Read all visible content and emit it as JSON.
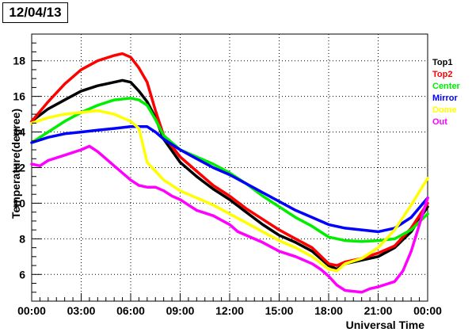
{
  "chart_data": {
    "type": "line",
    "title": "12/04/13",
    "xlabel": "Universal Time",
    "ylabel": "Temperature(degree)",
    "xlim": [
      0,
      24
    ],
    "ylim": [
      4.5,
      19.5
    ],
    "x_tick_labels": [
      "00:00",
      "03:00",
      "06:00",
      "09:00",
      "12:00",
      "15:00",
      "18:00",
      "21:00",
      "00:00"
    ],
    "x_tick_values": [
      0,
      3,
      6,
      9,
      12,
      15,
      18,
      21,
      24
    ],
    "y_ticks": [
      6,
      8,
      10,
      12,
      14,
      16,
      18
    ],
    "grid": true,
    "legend_position": "right",
    "series": [
      {
        "name": "Top1",
        "color": "#000000",
        "x": [
          0,
          1,
          2,
          3,
          4,
          5,
          5.5,
          6,
          6.5,
          7,
          7.5,
          8,
          9,
          10,
          11,
          12,
          13,
          14,
          15,
          16,
          17,
          18,
          18.5,
          19,
          20,
          21,
          22,
          23,
          24
        ],
        "y": [
          14.6,
          15.3,
          15.8,
          16.3,
          16.6,
          16.8,
          16.9,
          16.8,
          16.3,
          15.7,
          14.8,
          13.6,
          12.3,
          11.5,
          10.8,
          10.2,
          9.5,
          8.8,
          8.2,
          7.8,
          7.3,
          6.5,
          6.3,
          6.6,
          6.8,
          7.0,
          7.5,
          8.4,
          9.8
        ]
      },
      {
        "name": "Top2",
        "color": "#ff0000",
        "x": [
          0,
          1,
          2,
          3,
          4,
          5,
          5.5,
          6,
          6.5,
          7,
          7.5,
          8,
          9,
          10,
          11,
          12,
          13,
          14,
          15,
          16,
          17,
          18,
          18.5,
          19,
          20,
          21,
          22,
          23,
          24
        ],
        "y": [
          14.6,
          15.7,
          16.7,
          17.5,
          18.0,
          18.3,
          18.4,
          18.2,
          17.6,
          16.8,
          15.2,
          13.8,
          12.6,
          11.8,
          11.0,
          10.4,
          9.7,
          9.1,
          8.5,
          8.0,
          7.5,
          6.6,
          6.5,
          6.7,
          6.9,
          7.2,
          7.6,
          8.6,
          10.0
        ]
      },
      {
        "name": "Center",
        "color": "#00ee00",
        "x": [
          0,
          1,
          2,
          3,
          4,
          5,
          6,
          6.5,
          7,
          7.5,
          8,
          9,
          10,
          11,
          12,
          13,
          14,
          15,
          16,
          17,
          18,
          19,
          20,
          21,
          22,
          23,
          24
        ],
        "y": [
          13.4,
          14.0,
          14.6,
          15.1,
          15.5,
          15.8,
          15.9,
          15.8,
          15.5,
          14.7,
          13.8,
          13.0,
          12.6,
          12.2,
          11.7,
          11.1,
          10.4,
          9.8,
          9.2,
          8.7,
          8.1,
          7.9,
          7.85,
          7.9,
          8.0,
          8.5,
          9.4
        ]
      },
      {
        "name": "Mirror",
        "color": "#0000ff",
        "x": [
          0,
          1,
          2,
          3,
          4,
          5,
          6,
          7,
          7.5,
          8,
          9,
          10,
          11,
          12,
          13,
          14,
          15,
          16,
          17,
          18,
          19,
          20,
          21,
          22,
          23,
          24
        ],
        "y": [
          13.4,
          13.7,
          13.9,
          14.0,
          14.1,
          14.2,
          14.3,
          14.3,
          14.0,
          13.6,
          13.0,
          12.5,
          12.0,
          11.6,
          11.1,
          10.6,
          10.1,
          9.6,
          9.2,
          8.8,
          8.6,
          8.5,
          8.4,
          8.6,
          9.2,
          10.3
        ]
      },
      {
        "name": "Dome",
        "color": "#ffff00",
        "x": [
          0,
          1,
          2,
          3,
          4,
          5,
          6,
          6.5,
          7,
          7.5,
          8,
          9,
          10,
          11,
          12,
          13,
          14,
          15,
          16,
          17,
          18,
          18.5,
          19,
          20,
          21,
          22,
          23,
          24
        ],
        "y": [
          14.5,
          14.8,
          15.0,
          15.1,
          15.2,
          15.0,
          14.6,
          14.2,
          12.3,
          11.8,
          11.3,
          10.7,
          10.3,
          9.9,
          9.4,
          8.9,
          8.4,
          7.9,
          7.5,
          7.0,
          6.3,
          6.2,
          6.6,
          6.9,
          7.5,
          8.5,
          9.9,
          11.4
        ]
      },
      {
        "name": "Out",
        "color": "#ff00ff",
        "x": [
          0,
          0.5,
          1,
          2,
          3,
          3.5,
          4,
          5,
          6,
          6.5,
          7,
          7.5,
          8,
          8.5,
          9,
          10,
          11,
          12,
          12.5,
          13,
          14,
          15,
          16,
          17,
          17.5,
          18,
          18.5,
          19,
          20,
          20.5,
          21,
          22,
          22.5,
          23,
          24
        ],
        "y": [
          12.2,
          12.1,
          12.4,
          12.7,
          13.0,
          13.2,
          12.9,
          12.1,
          11.3,
          11.0,
          10.9,
          10.9,
          10.7,
          10.4,
          10.2,
          9.6,
          9.3,
          8.8,
          8.4,
          8.2,
          7.8,
          7.3,
          7.0,
          6.6,
          6.3,
          5.9,
          5.4,
          5.1,
          5.0,
          5.2,
          5.3,
          5.6,
          6.2,
          7.3,
          10.3
        ]
      }
    ]
  }
}
